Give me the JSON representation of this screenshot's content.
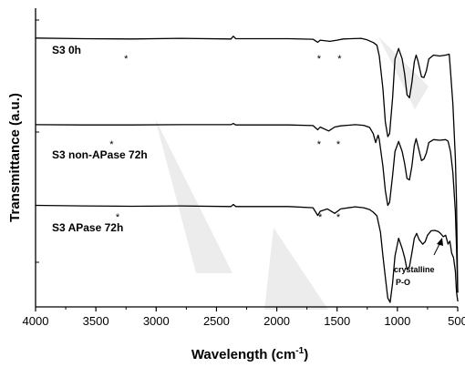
{
  "chart_data": {
    "type": "line",
    "xlabel": "Wavelength (cm",
    "xlabel_sup": "-1",
    "xlabel_close": ")",
    "ylabel": "Transmittance (a.u.)",
    "xlim": [
      4000,
      500
    ],
    "x_reversed": true,
    "x_ticks": [
      4000,
      3500,
      3000,
      2500,
      2000,
      1500,
      1000,
      500
    ],
    "x_tick_labels": [
      "4000",
      "3500",
      "3000",
      "2500",
      "2000",
      "1500",
      "1000",
      "500"
    ],
    "ylim": [
      0,
      100
    ],
    "y_tick_labels": false,
    "grid": false,
    "series": [
      {
        "name": "S3 0h",
        "color": "#000000",
        "points": [
          [
            4000,
            90
          ],
          [
            3600,
            89.8
          ],
          [
            3200,
            89.7
          ],
          [
            2800,
            89.9
          ],
          [
            2380,
            89.7
          ],
          [
            2360,
            90.6
          ],
          [
            2340,
            89.8
          ],
          [
            1900,
            89.8
          ],
          [
            1700,
            89.6
          ],
          [
            1660,
            88.6
          ],
          [
            1640,
            89.3
          ],
          [
            1560,
            88.9
          ],
          [
            1500,
            89.3
          ],
          [
            1450,
            89.7
          ],
          [
            1300,
            89.9
          ],
          [
            1250,
            89.4
          ],
          [
            1200,
            88.5
          ],
          [
            1170,
            87.6
          ],
          [
            1150,
            84
          ],
          [
            1120,
            73
          ],
          [
            1100,
            62
          ],
          [
            1080,
            57
          ],
          [
            1065,
            58
          ],
          [
            1040,
            70
          ],
          [
            1020,
            83
          ],
          [
            990,
            86.5
          ],
          [
            960,
            83
          ],
          [
            940,
            78
          ],
          [
            920,
            71
          ],
          [
            900,
            70
          ],
          [
            880,
            75
          ],
          [
            860,
            82
          ],
          [
            845,
            84.3
          ],
          [
            830,
            82.5
          ],
          [
            800,
            77
          ],
          [
            780,
            76.8
          ],
          [
            760,
            79
          ],
          [
            740,
            83
          ],
          [
            700,
            84.3
          ],
          [
            650,
            84
          ],
          [
            600,
            84.3
          ],
          [
            570,
            84.6
          ],
          [
            560,
            79
          ],
          [
            540,
            68
          ],
          [
            520,
            50
          ],
          [
            510,
            35
          ],
          [
            500,
            5
          ],
          [
            495,
            5
          ]
        ],
        "asterisks": [
          3250,
          1650,
          1480
        ]
      },
      {
        "name": "S3 non-APase 72h",
        "color": "#000000",
        "points": [
          [
            4000,
            61
          ],
          [
            3600,
            60.9
          ],
          [
            3200,
            60.9
          ],
          [
            2800,
            61
          ],
          [
            2380,
            61
          ],
          [
            2360,
            61.4
          ],
          [
            2340,
            60.9
          ],
          [
            1900,
            60.9
          ],
          [
            1700,
            60.7
          ],
          [
            1660,
            59.3
          ],
          [
            1640,
            60.2
          ],
          [
            1570,
            58.9
          ],
          [
            1520,
            60.2
          ],
          [
            1470,
            60.6
          ],
          [
            1350,
            61
          ],
          [
            1280,
            60.8
          ],
          [
            1230,
            60.1
          ],
          [
            1200,
            58
          ],
          [
            1180,
            55
          ],
          [
            1160,
            57.5
          ],
          [
            1150,
            56
          ],
          [
            1120,
            47
          ],
          [
            1100,
            39
          ],
          [
            1080,
            34
          ],
          [
            1065,
            35
          ],
          [
            1040,
            44
          ],
          [
            1020,
            52
          ],
          [
            990,
            55.4
          ],
          [
            960,
            52
          ],
          [
            940,
            48
          ],
          [
            920,
            43
          ],
          [
            900,
            42.5
          ],
          [
            880,
            47
          ],
          [
            860,
            54
          ],
          [
            845,
            56.3
          ],
          [
            830,
            54
          ],
          [
            800,
            49
          ],
          [
            780,
            49.5
          ],
          [
            760,
            51.5
          ],
          [
            740,
            55
          ],
          [
            700,
            56
          ],
          [
            650,
            55.8
          ],
          [
            600,
            56
          ],
          [
            580,
            55.5
          ],
          [
            560,
            52
          ],
          [
            540,
            45
          ],
          [
            520,
            32
          ],
          [
            510,
            20
          ],
          [
            500,
            5
          ],
          [
            495,
            5
          ]
        ],
        "asterisks": [
          3370,
          1650,
          1490
        ]
      },
      {
        "name": "S3 APase 72h",
        "color": "#000000",
        "points": [
          [
            4000,
            34
          ],
          [
            3600,
            33.8
          ],
          [
            3200,
            33.7
          ],
          [
            2800,
            33.8
          ],
          [
            2380,
            33.6
          ],
          [
            2360,
            34.3
          ],
          [
            2340,
            33.6
          ],
          [
            1900,
            33.6
          ],
          [
            1700,
            33.2
          ],
          [
            1660,
            30.6
          ],
          [
            1640,
            32
          ],
          [
            1580,
            32.8
          ],
          [
            1520,
            31.3
          ],
          [
            1470,
            32.8
          ],
          [
            1350,
            33.5
          ],
          [
            1280,
            33.2
          ],
          [
            1230,
            32.6
          ],
          [
            1200,
            31.7
          ],
          [
            1170,
            30.5
          ],
          [
            1140,
            25
          ],
          [
            1120,
            17
          ],
          [
            1100,
            10
          ],
          [
            1080,
            3
          ],
          [
            1060,
            1.5
          ],
          [
            1040,
            8
          ],
          [
            1020,
            17
          ],
          [
            990,
            23
          ],
          [
            960,
            19.5
          ],
          [
            940,
            16.5
          ],
          [
            920,
            12.5
          ],
          [
            900,
            13.5
          ],
          [
            880,
            18
          ],
          [
            860,
            23
          ],
          [
            840,
            24.6
          ],
          [
            820,
            22.5
          ],
          [
            790,
            21
          ],
          [
            770,
            21.8
          ],
          [
            750,
            24
          ],
          [
            720,
            25.5
          ],
          [
            690,
            25.6
          ],
          [
            660,
            25.2
          ],
          [
            640,
            24.5
          ],
          [
            620,
            23.5
          ],
          [
            600,
            24
          ],
          [
            580,
            21
          ],
          [
            565,
            22
          ],
          [
            550,
            18
          ],
          [
            535,
            16.5
          ],
          [
            520,
            12
          ],
          [
            510,
            5
          ],
          [
            500,
            2
          ],
          [
            495,
            2
          ]
        ],
        "asterisks": [
          3320,
          1640,
          1490
        ]
      }
    ],
    "annotations": [
      {
        "text": "crystalline",
        "x": 560,
        "y": 16
      },
      {
        "text": "P-O",
        "x": 570,
        "y": 9
      }
    ]
  }
}
